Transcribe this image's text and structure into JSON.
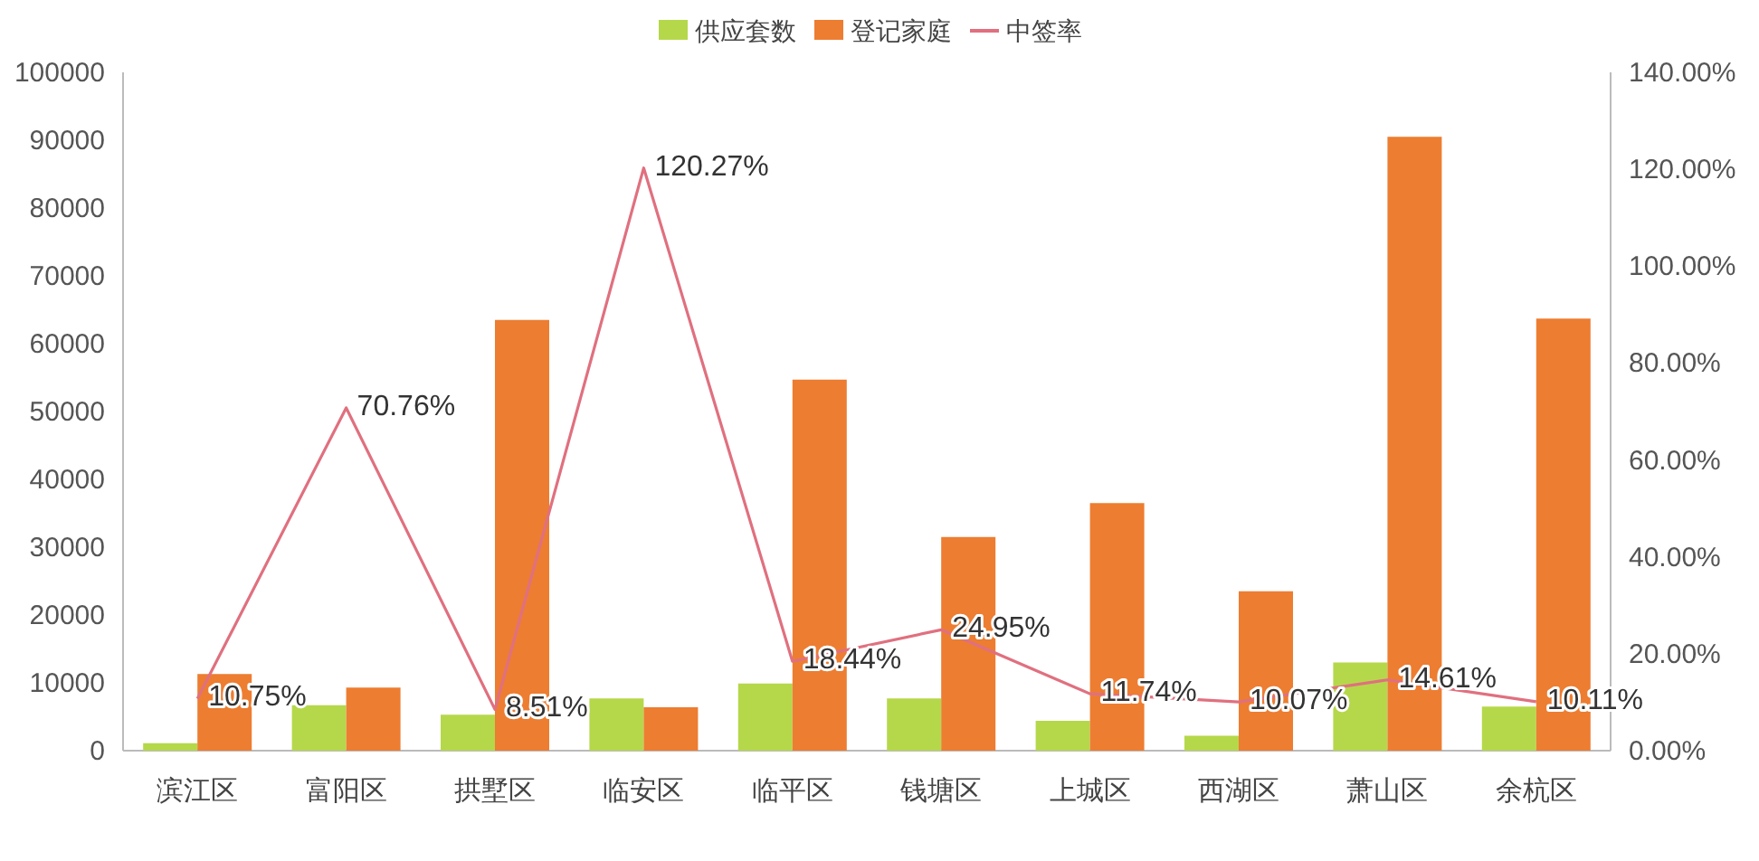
{
  "chart_data": {
    "type": "bar",
    "categories": [
      "滨江区",
      "富阳区",
      "拱墅区",
      "临安区",
      "临平区",
      "钱塘区",
      "上城区",
      "西湖区",
      "萧山区",
      "余杭区"
    ],
    "series": [
      {
        "name": "供应套数",
        "color": "#b5d84a",
        "values": [
          1100,
          6700,
          5300,
          7700,
          9900,
          7700,
          4400,
          2200,
          13000,
          6500
        ]
      },
      {
        "name": "登记家庭",
        "color": "#ed7d31",
        "values": [
          11300,
          9300,
          63500,
          6400,
          54700,
          31500,
          36500,
          23500,
          90500,
          63700
        ]
      },
      {
        "name": "中签率",
        "type": "line",
        "axis": "y2",
        "color": "#e0707f",
        "values": [
          10.75,
          70.76,
          8.51,
          120.27,
          18.44,
          24.95,
          11.74,
          10.07,
          14.61,
          10.11
        ],
        "value_labels": [
          "10.75%",
          "70.76%",
          "8.51%",
          "120.27%",
          "18.44%",
          "24.95%",
          "11.74%",
          "10.07%",
          "14.61%",
          "10.11%"
        ]
      }
    ],
    "ylim": [
      0,
      100000
    ],
    "yticks": [
      0,
      10000,
      20000,
      30000,
      40000,
      50000,
      60000,
      70000,
      80000,
      90000,
      100000
    ],
    "y2lim": [
      0,
      140
    ],
    "y2ticks": [
      {
        "value": 0,
        "label": "0.00%"
      },
      {
        "value": 20,
        "label": "20.00%"
      },
      {
        "value": 40,
        "label": "40.00%"
      },
      {
        "value": 60,
        "label": "60.00%"
      },
      {
        "value": 80,
        "label": "80.00%"
      },
      {
        "value": 100,
        "label": "100.00%"
      },
      {
        "value": 120,
        "label": "120.00%"
      },
      {
        "value": 140,
        "label": "140.00%"
      }
    ],
    "legend": "top",
    "grid": false
  }
}
